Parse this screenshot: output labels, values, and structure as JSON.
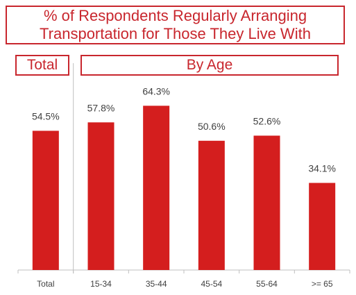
{
  "title": {
    "line1": "% of Respondents Regularly Arranging",
    "line2": "Transportation for Those They Live With"
  },
  "group_headers": {
    "total": "Total",
    "by_age": "By Age"
  },
  "colors": {
    "bar": "#d41e1e",
    "accent": "#c8262d",
    "axis": "#bfbfbf"
  },
  "chart_data": {
    "type": "bar",
    "title": "% of Respondents Regularly Arranging Transportation for Those They Live With",
    "categories": [
      "Total",
      "15-34",
      "35-44",
      "45-54",
      "55-64",
      ">= 65"
    ],
    "values": [
      54.5,
      57.8,
      64.3,
      50.6,
      52.6,
      34.1
    ],
    "value_labels": [
      "54.5%",
      "57.8%",
      "64.3%",
      "50.6%",
      "52.6%",
      "34.1%"
    ],
    "groups": [
      {
        "name": "Total",
        "categories": [
          "Total"
        ]
      },
      {
        "name": "By Age",
        "categories": [
          "15-34",
          "35-44",
          "45-54",
          "55-64",
          ">= 65"
        ]
      }
    ],
    "xlabel": "",
    "ylabel": "",
    "ylim": [
      0,
      100
    ],
    "grid": false,
    "legend": "none"
  }
}
